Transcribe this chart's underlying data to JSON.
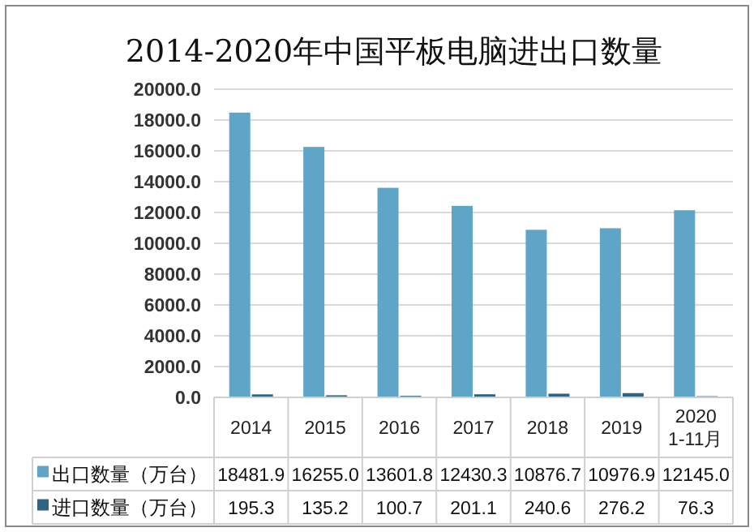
{
  "chart_data": {
    "type": "bar",
    "title": "2014-2020年中国平板电脑进出口数量",
    "categories": [
      "2014",
      "2015",
      "2016",
      "2017",
      "2018",
      "2019",
      "2020 1-11月"
    ],
    "series": [
      {
        "name": "出口数量（万台）",
        "color": "#5fa5c8",
        "values": [
          18481.9,
          16255.0,
          13601.8,
          12430.3,
          10876.7,
          10976.9,
          12145.0
        ],
        "value_labels": [
          "18481.9",
          "16255.0",
          "13601.8",
          "12430.3",
          "10876.7",
          "10976.9",
          "12145.0"
        ]
      },
      {
        "name": "进口数量（万台）",
        "color": "#2f6580",
        "values": [
          195.3,
          135.2,
          100.7,
          201.1,
          240.6,
          276.2,
          76.3
        ],
        "value_labels": [
          "195.3",
          "135.2",
          "100.7",
          "201.1",
          "240.6",
          "276.2",
          "76.3"
        ]
      }
    ],
    "ylim": [
      0,
      20000
    ],
    "yticks": [
      {
        "value": 0,
        "label": "0.0"
      },
      {
        "value": 2000,
        "label": "2000.0"
      },
      {
        "value": 4000,
        "label": "4000.0"
      },
      {
        "value": 6000,
        "label": "6000.0"
      },
      {
        "value": 8000,
        "label": "8000.0"
      },
      {
        "value": 10000,
        "label": "10000.0"
      },
      {
        "value": 12000,
        "label": "12000.0"
      },
      {
        "value": 14000,
        "label": "14000.0"
      },
      {
        "value": 16000,
        "label": "16000.0"
      },
      {
        "value": 18000,
        "label": "18000.0"
      },
      {
        "value": 20000,
        "label": "20000.0"
      }
    ],
    "grid": "y",
    "legend": "bottom"
  }
}
